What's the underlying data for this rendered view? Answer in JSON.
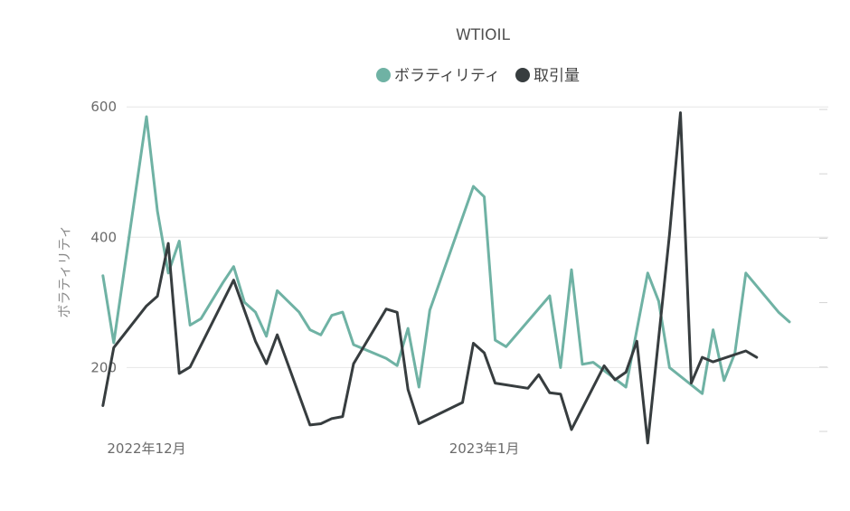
{
  "chart_data": {
    "type": "line",
    "title": "WTIOIL",
    "ylabel": "ボラティリティ",
    "ylim": [
      70,
      660
    ],
    "yticks": [
      200,
      400,
      600
    ],
    "secondary_ylim": [
      100,
      600
    ],
    "secondary_axis_labels_visible": false,
    "grid": true,
    "legend_position": "top-center",
    "x_labels": [
      {
        "text": "2022年12月",
        "x": 0
      },
      {
        "text": "2023年1月",
        "x": 31
      }
    ],
    "series": [
      {
        "name": "ボラティリティ",
        "color": "#6fb2a4",
        "axis": "primary",
        "points": [
          [
            -4,
            341
          ],
          [
            -3,
            238
          ],
          [
            0,
            585
          ],
          [
            1,
            440
          ],
          [
            2,
            345
          ],
          [
            3,
            394
          ],
          [
            4,
            265
          ],
          [
            5,
            275
          ],
          [
            7,
            330
          ],
          [
            8,
            355
          ],
          [
            9,
            300
          ],
          [
            10,
            285
          ],
          [
            11,
            248
          ],
          [
            12,
            318
          ],
          [
            14,
            285
          ],
          [
            15,
            258
          ],
          [
            16,
            250
          ],
          [
            17,
            280
          ],
          [
            18,
            285
          ],
          [
            19,
            235
          ],
          [
            22,
            214
          ],
          [
            23,
            203
          ],
          [
            24,
            260
          ],
          [
            25,
            170
          ],
          [
            26,
            288
          ],
          [
            30,
            478
          ],
          [
            31,
            462
          ],
          [
            32,
            242
          ],
          [
            33,
            232
          ],
          [
            37,
            310
          ],
          [
            38,
            200
          ],
          [
            39,
            350
          ],
          [
            40,
            205
          ],
          [
            41,
            208
          ],
          [
            44,
            170
          ],
          [
            46,
            345
          ],
          [
            47,
            302
          ],
          [
            48,
            200
          ],
          [
            51,
            160
          ],
          [
            52,
            258
          ],
          [
            53,
            180
          ],
          [
            54,
            222
          ],
          [
            55,
            345
          ],
          [
            58,
            285
          ],
          [
            59,
            270
          ]
        ]
      },
      {
        "name": "取引量",
        "color": "#373d3f",
        "axis": "secondary",
        "points": [
          [
            -4,
            140
          ],
          [
            -3,
            230
          ],
          [
            0,
            295
          ],
          [
            1,
            310
          ],
          [
            2,
            392
          ],
          [
            3,
            190
          ],
          [
            4,
            200
          ],
          [
            8,
            335
          ],
          [
            10,
            240
          ],
          [
            11,
            205
          ],
          [
            12,
            250
          ],
          [
            15,
            110
          ],
          [
            16,
            112
          ],
          [
            17,
            120
          ],
          [
            18,
            123
          ],
          [
            19,
            205
          ],
          [
            22,
            290
          ],
          [
            23,
            285
          ],
          [
            24,
            165
          ],
          [
            25,
            112
          ],
          [
            29,
            145
          ],
          [
            30,
            237
          ],
          [
            31,
            222
          ],
          [
            32,
            175
          ],
          [
            35,
            167
          ],
          [
            36,
            188
          ],
          [
            37,
            160
          ],
          [
            38,
            158
          ],
          [
            39,
            103
          ],
          [
            42,
            202
          ],
          [
            43,
            180
          ],
          [
            44,
            192
          ],
          [
            45,
            240
          ],
          [
            46,
            82
          ],
          [
            48,
            406
          ],
          [
            49,
            595
          ],
          [
            50,
            175
          ],
          [
            51,
            215
          ],
          [
            52,
            208
          ],
          [
            55,
            225
          ],
          [
            56,
            215
          ]
        ]
      }
    ]
  }
}
